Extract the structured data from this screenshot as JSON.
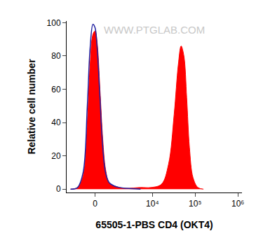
{
  "chart_data": {
    "type": "line",
    "xlabel": "65505-1-PBS CD4 (OKT4)",
    "ylabel": "Relative cell number",
    "annotations": [
      "WWW.PTGLAB.COM"
    ],
    "xlim": [
      -2000,
      1250000
    ],
    "xticks": [
      0,
      {
        "value": 10000,
        "label": "10⁴"
      },
      {
        "value": 100000,
        "label": "10⁵"
      },
      {
        "value": 1000000,
        "label": "10⁶"
      }
    ],
    "ylim": [
      -2,
      101
    ],
    "yticks": [
      0,
      20,
      40,
      60,
      80,
      100
    ],
    "grid": false,
    "series": [
      {
        "type": "area",
        "color": "#ff0000",
        "x": [
          -1580,
          -987,
          -623,
          -388,
          -242,
          -103,
          0,
          103,
          242,
          388,
          541,
          752,
          1095,
          1576,
          2392,
          5235,
          9260,
          16330,
          23850,
          32290,
          40450,
          46980,
          54600,
          63400,
          73650,
          89070,
          116100,
          156900
        ],
        "values": [
          0,
          1,
          8,
          40,
          75,
          93,
          95,
          88,
          60,
          30,
          12,
          4,
          2,
          1,
          0.5,
          1,
          1,
          3,
          15,
          45,
          75,
          86,
          80,
          55,
          25,
          7,
          1,
          0
        ]
      },
      {
        "type": "line",
        "color": "#2020a0",
        "x": [
          -1580,
          -987,
          -623,
          -388,
          -242,
          -103,
          0,
          103,
          242,
          388,
          541,
          752,
          1095,
          1576,
          2392,
          5235
        ],
        "values": [
          0,
          1,
          10,
          50,
          85,
          99,
          97,
          85,
          55,
          25,
          10,
          4,
          2,
          1,
          0.5,
          0
        ]
      }
    ]
  }
}
